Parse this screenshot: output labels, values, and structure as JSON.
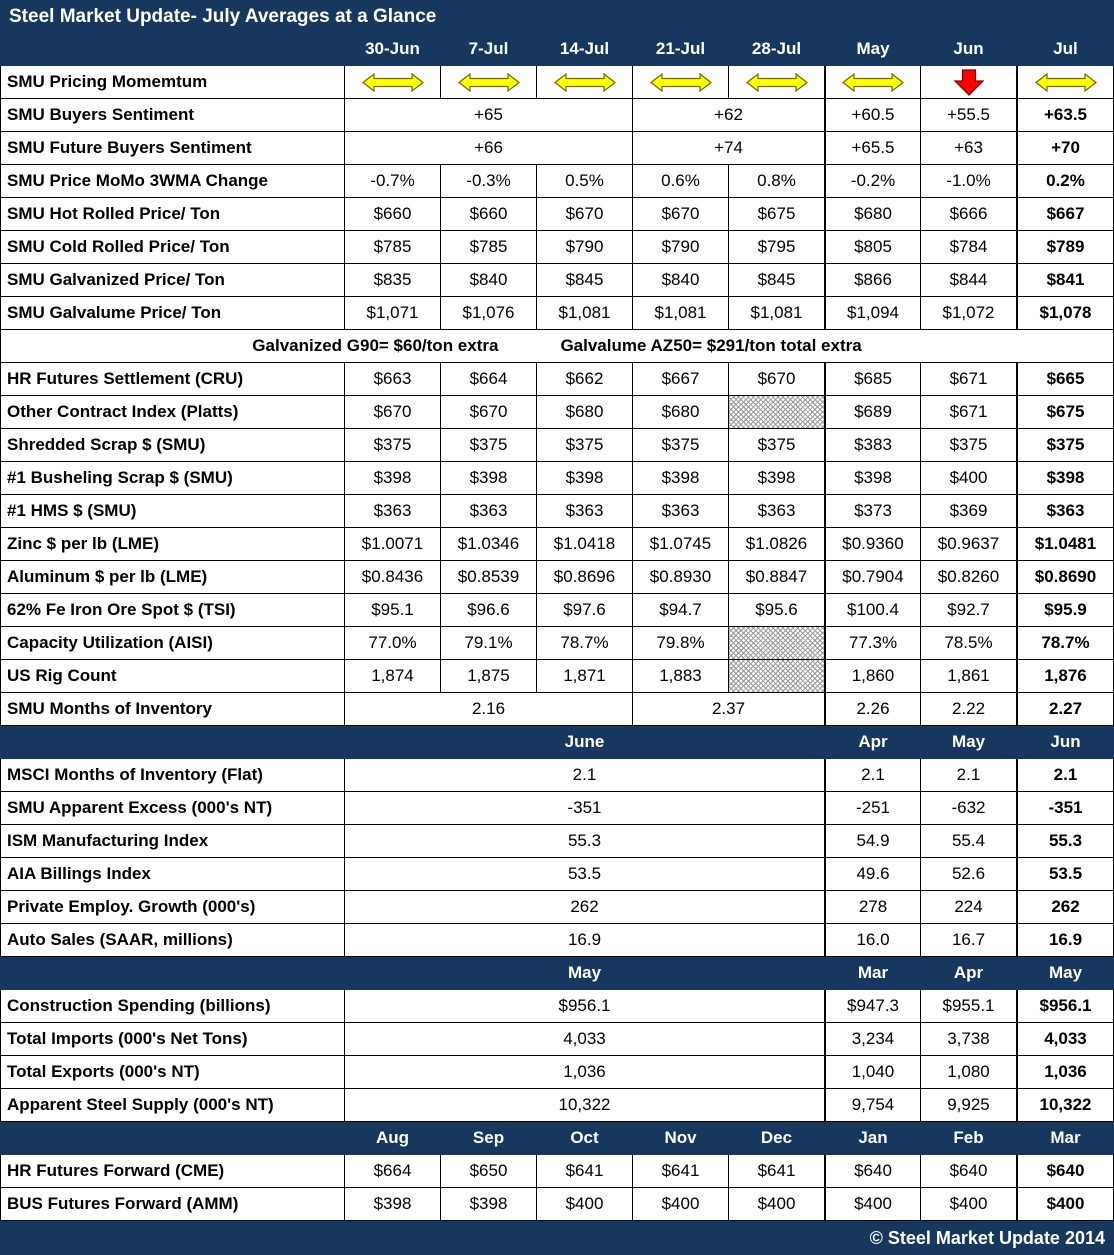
{
  "footer": "© Steel Market Update 2014",
  "colors": {
    "navy": "#17375e",
    "arrow_yellow": "#ffff00",
    "arrow_red": "#ff0000",
    "grid": "#000000"
  },
  "chart_data": {
    "type": "table",
    "title": "Steel Market Update- July Averages at a Glance",
    "columns": [
      "30-Jun",
      "7-Jul",
      "14-Jul",
      "21-Jul",
      "28-Jul",
      "May",
      "Jun",
      "Jul"
    ],
    "rows": [
      {
        "label": "SMU Pricing Momemtum",
        "cells": [
          {
            "icon": "flat-arrow"
          },
          {
            "icon": "flat-arrow"
          },
          {
            "icon": "flat-arrow"
          },
          {
            "icon": "flat-arrow"
          },
          {
            "icon": "flat-arrow"
          },
          {
            "icon": "flat-arrow"
          },
          {
            "icon": "down-arrow"
          },
          {
            "icon": "flat-arrow"
          }
        ]
      },
      {
        "label": "SMU Buyers Sentiment",
        "cells": [
          {
            "t": "+65",
            "span": 3
          },
          {
            "t": "+62",
            "span": 2
          },
          "+60.5",
          "+55.5",
          "+63.5"
        ]
      },
      {
        "label": "SMU Future Buyers Sentiment",
        "cells": [
          {
            "t": "+66",
            "span": 3
          },
          {
            "t": "+74",
            "span": 2
          },
          "+65.5",
          "+63",
          "+70"
        ]
      },
      {
        "label": "SMU Price MoMo 3WMA Change",
        "cells": [
          "-0.7%",
          "-0.3%",
          "0.5%",
          "0.6%",
          "0.8%",
          "-0.2%",
          "-1.0%",
          "0.2%"
        ]
      },
      {
        "label": "SMU Hot Rolled Price/ Ton",
        "cells": [
          "$660",
          "$660",
          "$670",
          "$670",
          "$675",
          "$680",
          "$666",
          "$667"
        ]
      },
      {
        "label": "SMU Cold Rolled Price/ Ton",
        "cells": [
          "$785",
          "$785",
          "$790",
          "$790",
          "$795",
          "$805",
          "$784",
          "$789"
        ]
      },
      {
        "label": "SMU Galvanized Price/ Ton",
        "cells": [
          "$835",
          "$840",
          "$845",
          "$840",
          "$845",
          "$866",
          "$844",
          "$841"
        ]
      },
      {
        "label": "SMU Galvalume Price/ Ton",
        "cells": [
          "$1,071",
          "$1,076",
          "$1,081",
          "$1,081",
          "$1,081",
          "$1,094",
          "$1,072",
          "$1,078"
        ]
      },
      {
        "type": "note",
        "left": "Galvanized G90= $60/ton extra",
        "right": "Galvalume AZ50= $291/ton total extra"
      },
      {
        "label": "HR Futures Settlement (CRU)",
        "cells": [
          "$663",
          "$664",
          "$662",
          "$667",
          "$670",
          "$685",
          "$671",
          "$665"
        ]
      },
      {
        "label": "Other Contract Index (Platts)",
        "cells": [
          "$670",
          "$670",
          "$680",
          "$680",
          {
            "hatch": true
          },
          "$689",
          "$671",
          "$675"
        ]
      },
      {
        "label": "Shredded Scrap $ (SMU)",
        "cells": [
          "$375",
          "$375",
          "$375",
          "$375",
          "$375",
          "$383",
          "$375",
          "$375"
        ]
      },
      {
        "label": "#1 Busheling Scrap $ (SMU)",
        "cells": [
          "$398",
          "$398",
          "$398",
          "$398",
          "$398",
          "$398",
          "$400",
          "$398"
        ]
      },
      {
        "label": "#1 HMS $ (SMU)",
        "cells": [
          "$363",
          "$363",
          "$363",
          "$363",
          "$363",
          "$373",
          "$369",
          "$363"
        ]
      },
      {
        "label": "Zinc $ per lb (LME)",
        "cells": [
          "$1.0071",
          "$1.0346",
          "$1.0418",
          "$1.0745",
          "$1.0826",
          "$0.9360",
          "$0.9637",
          "$1.0481"
        ]
      },
      {
        "label": "Aluminum $ per lb (LME)",
        "cells": [
          "$0.8436",
          "$0.8539",
          "$0.8696",
          "$0.8930",
          "$0.8847",
          "$0.7904",
          "$0.8260",
          "$0.8690"
        ]
      },
      {
        "label": "62% Fe Iron Ore Spot $ (TSI)",
        "cells": [
          "$95.1",
          "$96.6",
          "$97.6",
          "$94.7",
          "$95.6",
          "$100.4",
          "$92.7",
          "$95.9"
        ]
      },
      {
        "label": "Capacity Utilization (AISI)",
        "cells": [
          "77.0%",
          "79.1%",
          "78.7%",
          "79.8%",
          {
            "hatch": true
          },
          "77.3%",
          "78.5%",
          "78.7%"
        ]
      },
      {
        "label": "US Rig Count",
        "cells": [
          "1,874",
          "1,875",
          "1,871",
          "1,883",
          {
            "hatch": true
          },
          "1,860",
          "1,861",
          "1,876"
        ]
      },
      {
        "label": "SMU Months of Inventory",
        "cells": [
          {
            "t": "2.16",
            "span": 3
          },
          {
            "t": "2.37",
            "span": 2
          },
          "2.26",
          "2.22",
          "2.27"
        ]
      },
      {
        "type": "section",
        "label": "",
        "cells": [
          {
            "t": "June",
            "span": 5
          },
          "Apr",
          "May",
          "Jun"
        ]
      },
      {
        "label": "MSCI Months of Inventory (Flat)",
        "cells": [
          {
            "t": "2.1",
            "span": 5
          },
          "2.1",
          "2.1",
          "2.1"
        ]
      },
      {
        "label": "SMU Apparent Excess (000's NT)",
        "cells": [
          {
            "t": "-351",
            "span": 5
          },
          "-251",
          "-632",
          "-351"
        ]
      },
      {
        "label": "ISM Manufacturing Index",
        "cells": [
          {
            "t": "55.3",
            "span": 5
          },
          "54.9",
          "55.4",
          "55.3"
        ]
      },
      {
        "label": "AIA Billings Index",
        "cells": [
          {
            "t": "53.5",
            "span": 5
          },
          "49.6",
          "52.6",
          "53.5"
        ]
      },
      {
        "label": "Private Employ. Growth (000's)",
        "cells": [
          {
            "t": "262",
            "span": 5
          },
          "278",
          "224",
          "262"
        ]
      },
      {
        "label": "Auto Sales (SAAR, millions)",
        "cells": [
          {
            "t": "16.9",
            "span": 5
          },
          "16.0",
          "16.7",
          "16.9"
        ]
      },
      {
        "type": "section",
        "label": "",
        "cells": [
          {
            "t": "May",
            "span": 5
          },
          "Mar",
          "Apr",
          "May"
        ]
      },
      {
        "label": "Construction Spending (billions)",
        "cells": [
          {
            "t": "$956.1",
            "span": 5
          },
          "$947.3",
          "$955.1",
          "$956.1"
        ]
      },
      {
        "label": "Total Imports (000's Net Tons)",
        "cells": [
          {
            "t": "4,033",
            "span": 5
          },
          "3,234",
          "3,738",
          "4,033"
        ]
      },
      {
        "label": "Total Exports (000's NT)",
        "cells": [
          {
            "t": "1,036",
            "span": 5
          },
          "1,040",
          "1,080",
          "1,036"
        ]
      },
      {
        "label": "Apparent Steel Supply (000's NT)",
        "cells": [
          {
            "t": "10,322",
            "span": 5
          },
          "9,754",
          "9,925",
          "10,322"
        ]
      },
      {
        "type": "section",
        "label": "",
        "cells": [
          "Aug",
          "Sep",
          "Oct",
          "Nov",
          "Dec",
          "Jan",
          "Feb",
          "Mar"
        ]
      },
      {
        "label": "HR Futures Forward (CME)",
        "cells": [
          "$664",
          "$650",
          "$641",
          "$641",
          "$641",
          "$640",
          "$640",
          "$640"
        ]
      },
      {
        "label": "BUS Futures Forward (AMM)",
        "cells": [
          "$398",
          "$398",
          "$400",
          "$400",
          "$400",
          "$400",
          "$400",
          "$400"
        ]
      }
    ]
  }
}
